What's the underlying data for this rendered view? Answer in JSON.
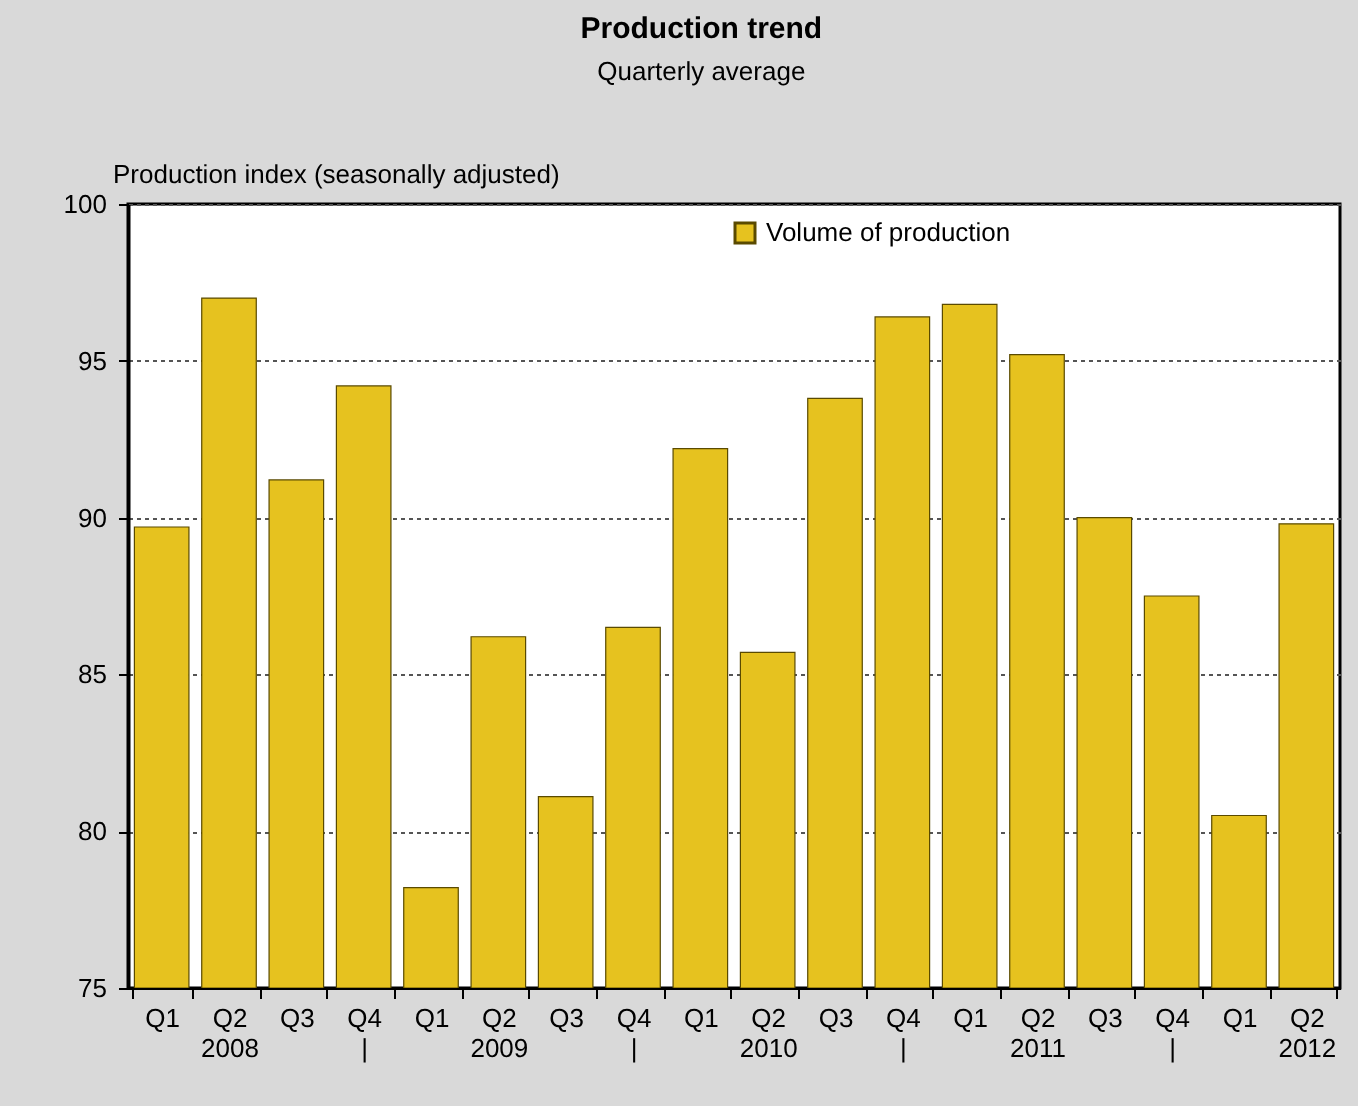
{
  "chart_data": {
    "type": "bar",
    "title": "Production trend",
    "subtitle": "Quarterly average",
    "ylabel": "Production index (seasonally adjusted)",
    "categories": [
      "Q1",
      "Q2\n2008",
      "Q3",
      "Q4\n|",
      "Q1",
      "Q2\n2009",
      "Q3",
      "Q4\n|",
      "Q1",
      "Q2\n2010",
      "Q3",
      "Q4\n|",
      "Q1",
      "Q2\n2011",
      "Q3",
      "Q4\n|",
      "Q1",
      "Q2\n2012"
    ],
    "series": [
      {
        "name": "Volume of production",
        "color": "#e6c21f",
        "values": [
          89.7,
          97.0,
          91.2,
          94.2,
          78.2,
          86.2,
          81.1,
          86.5,
          92.2,
          85.7,
          93.8,
          96.4,
          96.8,
          95.2,
          90.0,
          87.5,
          80.5,
          89.8
        ]
      }
    ],
    "ylim": [
      75,
      100
    ],
    "yticks": [
      75,
      80,
      85,
      90,
      95,
      100
    ],
    "grid": "y",
    "legend": "top"
  }
}
